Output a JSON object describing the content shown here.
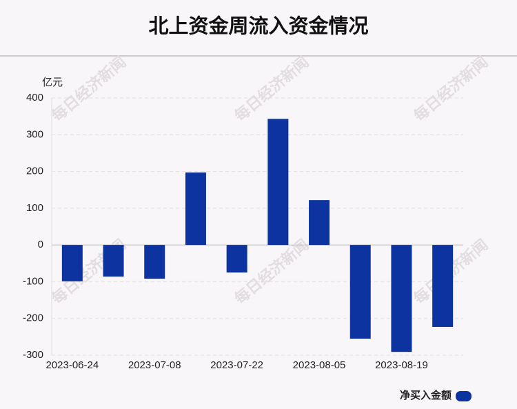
{
  "chart_data": {
    "type": "bar",
    "title": "北上资金周流入资金情况",
    "y_unit": "亿元",
    "watermark": "每日经济新闻",
    "categories": [
      "2023-06-24",
      null,
      "2023-07-08",
      null,
      "2023-07-22",
      null,
      "2023-08-05",
      null,
      "2023-08-19",
      null
    ],
    "series": [
      {
        "name": "净买入金额",
        "color": "#0c33a0",
        "values": [
          -99,
          -86,
          -92,
          197,
          -75,
          343,
          122,
          -255,
          -291,
          -223
        ]
      }
    ],
    "ylim": [
      -300,
      400
    ],
    "yticks": [
      -300,
      -200,
      -100,
      0,
      100,
      200,
      300,
      400
    ],
    "grid": true,
    "legend": "bottom-right"
  }
}
